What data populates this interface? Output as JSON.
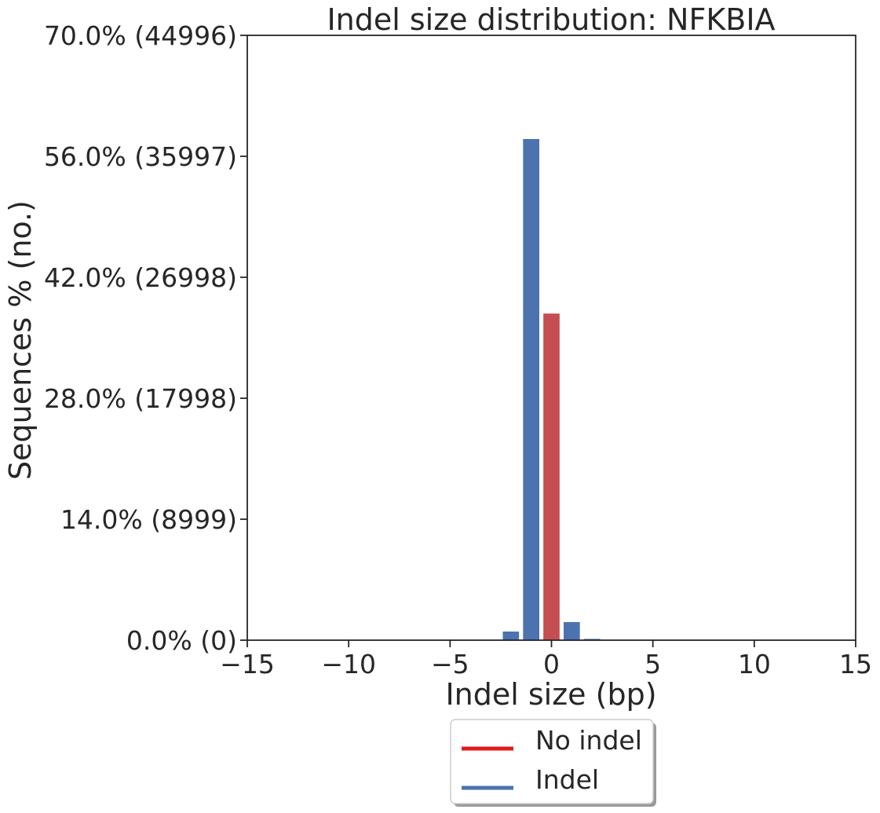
{
  "chart_data": {
    "type": "bar",
    "title": "Indel size distribution: NFKBIA",
    "xlabel": "Indel size (bp)",
    "ylabel": "Sequences % (no.)",
    "xlim": [
      -15,
      15
    ],
    "ylim": [
      0,
      70
    ],
    "x_ticks": [
      {
        "value": -15,
        "label": "−15"
      },
      {
        "value": -10,
        "label": "−10"
      },
      {
        "value": -5,
        "label": "−5"
      },
      {
        "value": 0,
        "label": "0"
      },
      {
        "value": 5,
        "label": "5"
      },
      {
        "value": 10,
        "label": "10"
      },
      {
        "value": 15,
        "label": "15"
      }
    ],
    "y_ticks": [
      {
        "value": 0,
        "label": "0.0% (0)"
      },
      {
        "value": 14,
        "label": "14.0% (8999)"
      },
      {
        "value": 28,
        "label": "28.0% (17998)"
      },
      {
        "value": 42,
        "label": "42.0% (26998)"
      },
      {
        "value": 56,
        "label": "56.0% (35997)"
      },
      {
        "value": 70,
        "label": "70.0% (44996)"
      }
    ],
    "bars": [
      {
        "x": -2,
        "value": 1.0,
        "series": "Indel"
      },
      {
        "x": -1,
        "value": 58.0,
        "series": "Indel"
      },
      {
        "x": 0,
        "value": 37.8,
        "series": "No indel"
      },
      {
        "x": 1,
        "value": 2.1,
        "series": "Indel"
      },
      {
        "x": 2,
        "value": 0.15,
        "series": "Indel"
      }
    ],
    "series": [
      {
        "name": "No indel",
        "color": "#c44e52",
        "legend_color": "#e41a1c"
      },
      {
        "name": "Indel",
        "color": "#4c72b0",
        "legend_color": "#4c72b0"
      }
    ],
    "legend_placement": "bottom-center",
    "grid": false
  }
}
